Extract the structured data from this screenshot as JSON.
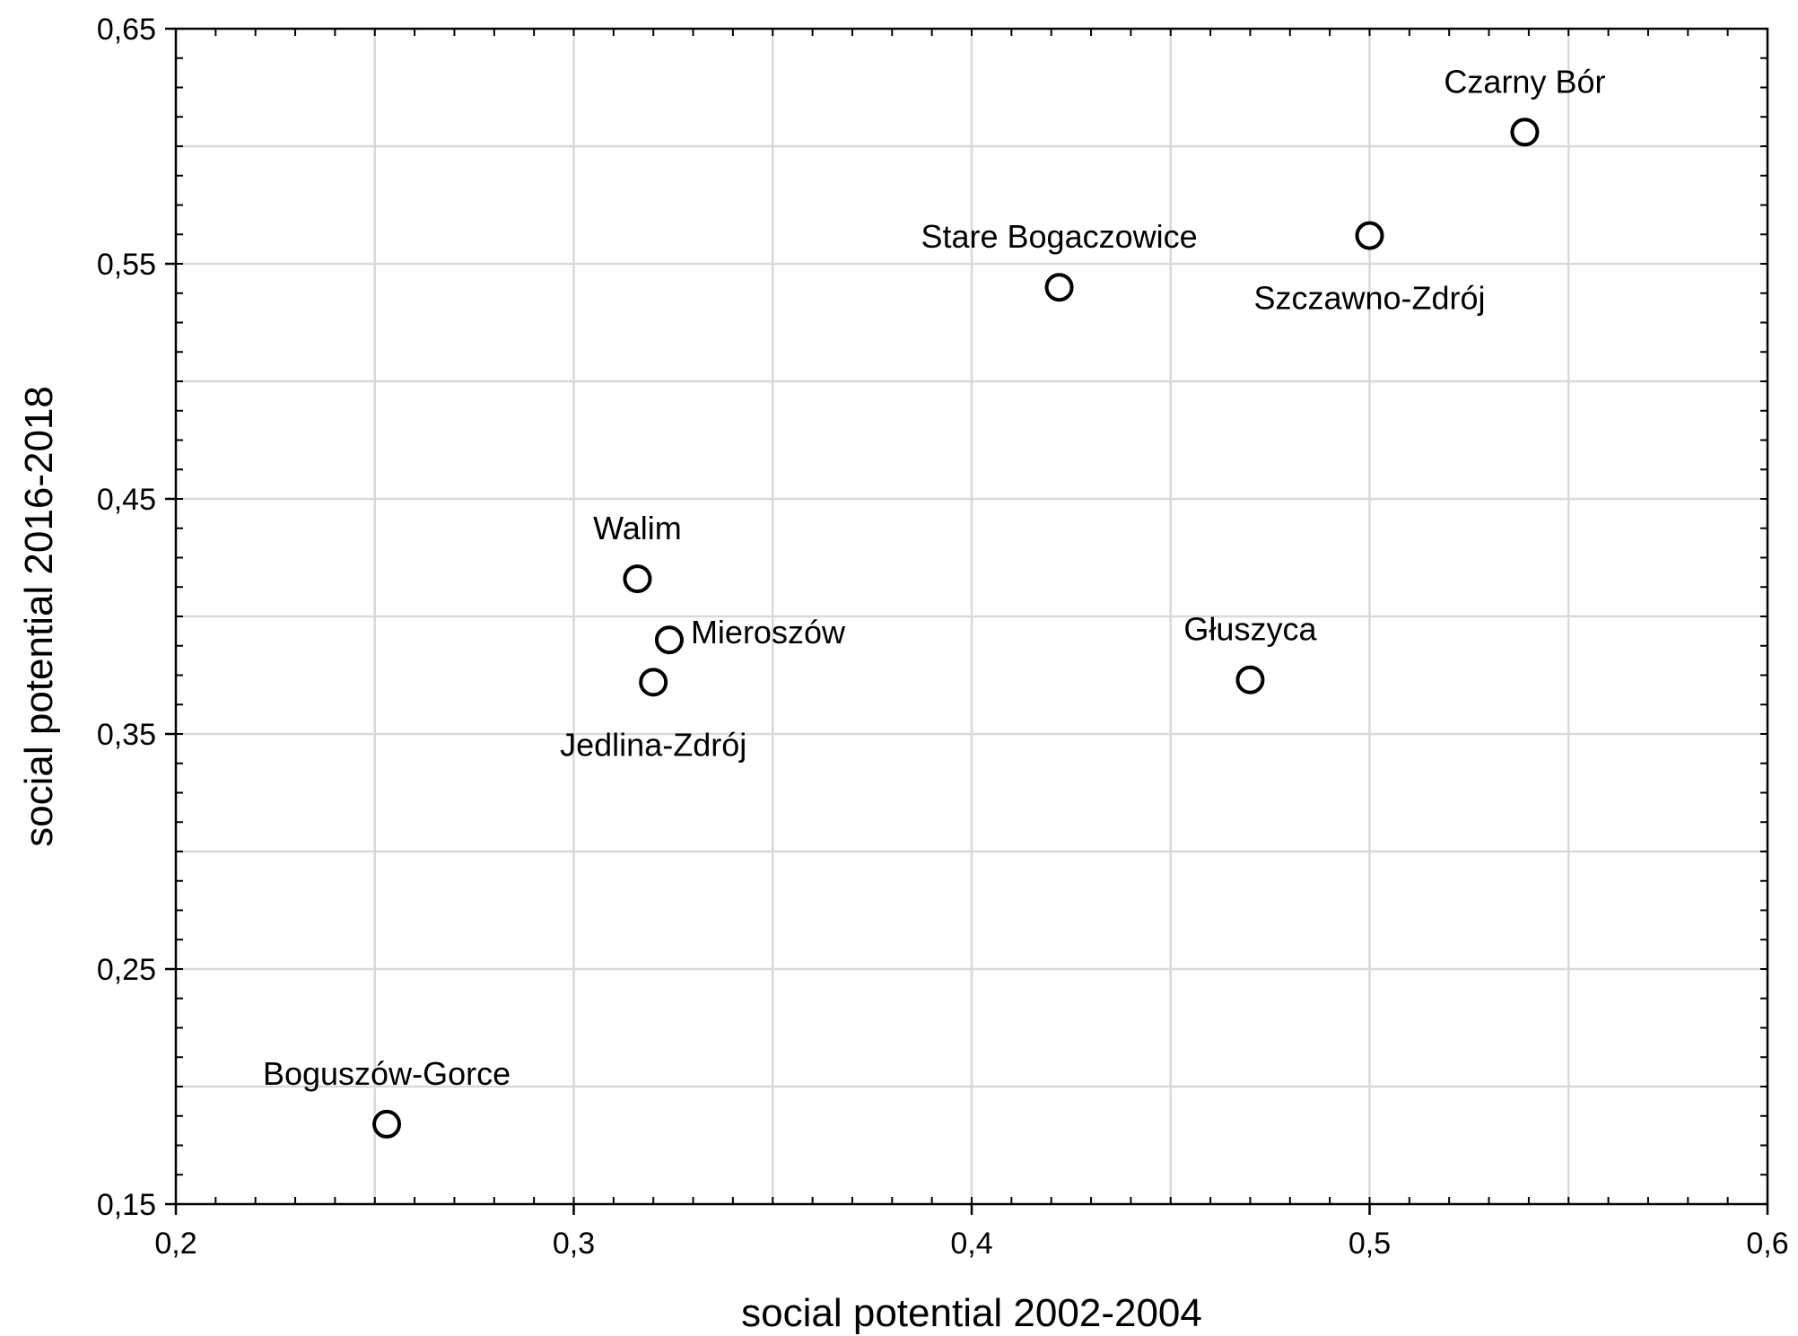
{
  "chart_data": {
    "type": "scatter",
    "title": "",
    "xlabel": "social potential 2002-2004",
    "ylabel": "social potential 2016-2018",
    "xlim": [
      0.2,
      0.6
    ],
    "ylim": [
      0.15,
      0.65
    ],
    "x_ticks": [
      0.2,
      0.3,
      0.4,
      0.5,
      0.6
    ],
    "x_tick_labels": [
      "0,2",
      "0,3",
      "0,4",
      "0,5",
      "0,6"
    ],
    "y_ticks": [
      0.15,
      0.25,
      0.35,
      0.45,
      0.55,
      0.65
    ],
    "y_tick_labels": [
      "0,15",
      "0,25",
      "0,35",
      "0,45",
      "0,55",
      "0,65"
    ],
    "grid": true,
    "points": [
      {
        "label": "Czarny Bór",
        "x": 0.539,
        "y": 0.606,
        "label_pos": "above"
      },
      {
        "label": "Szczawno-Zdrój",
        "x": 0.5,
        "y": 0.562,
        "label_pos": "below"
      },
      {
        "label": "Stare Bogaczowice",
        "x": 0.422,
        "y": 0.54,
        "label_pos": "above"
      },
      {
        "label": "Walim",
        "x": 0.316,
        "y": 0.416,
        "label_pos": "above"
      },
      {
        "label": "Mieroszów",
        "x": 0.324,
        "y": 0.39,
        "label_pos": "right"
      },
      {
        "label": "Jedlina-Zdrój",
        "x": 0.32,
        "y": 0.372,
        "label_pos": "below"
      },
      {
        "label": "Głuszyca",
        "x": 0.47,
        "y": 0.373,
        "label_pos": "above"
      },
      {
        "label": "Boguszów-Gorce",
        "x": 0.253,
        "y": 0.184,
        "label_pos": "above"
      }
    ]
  }
}
